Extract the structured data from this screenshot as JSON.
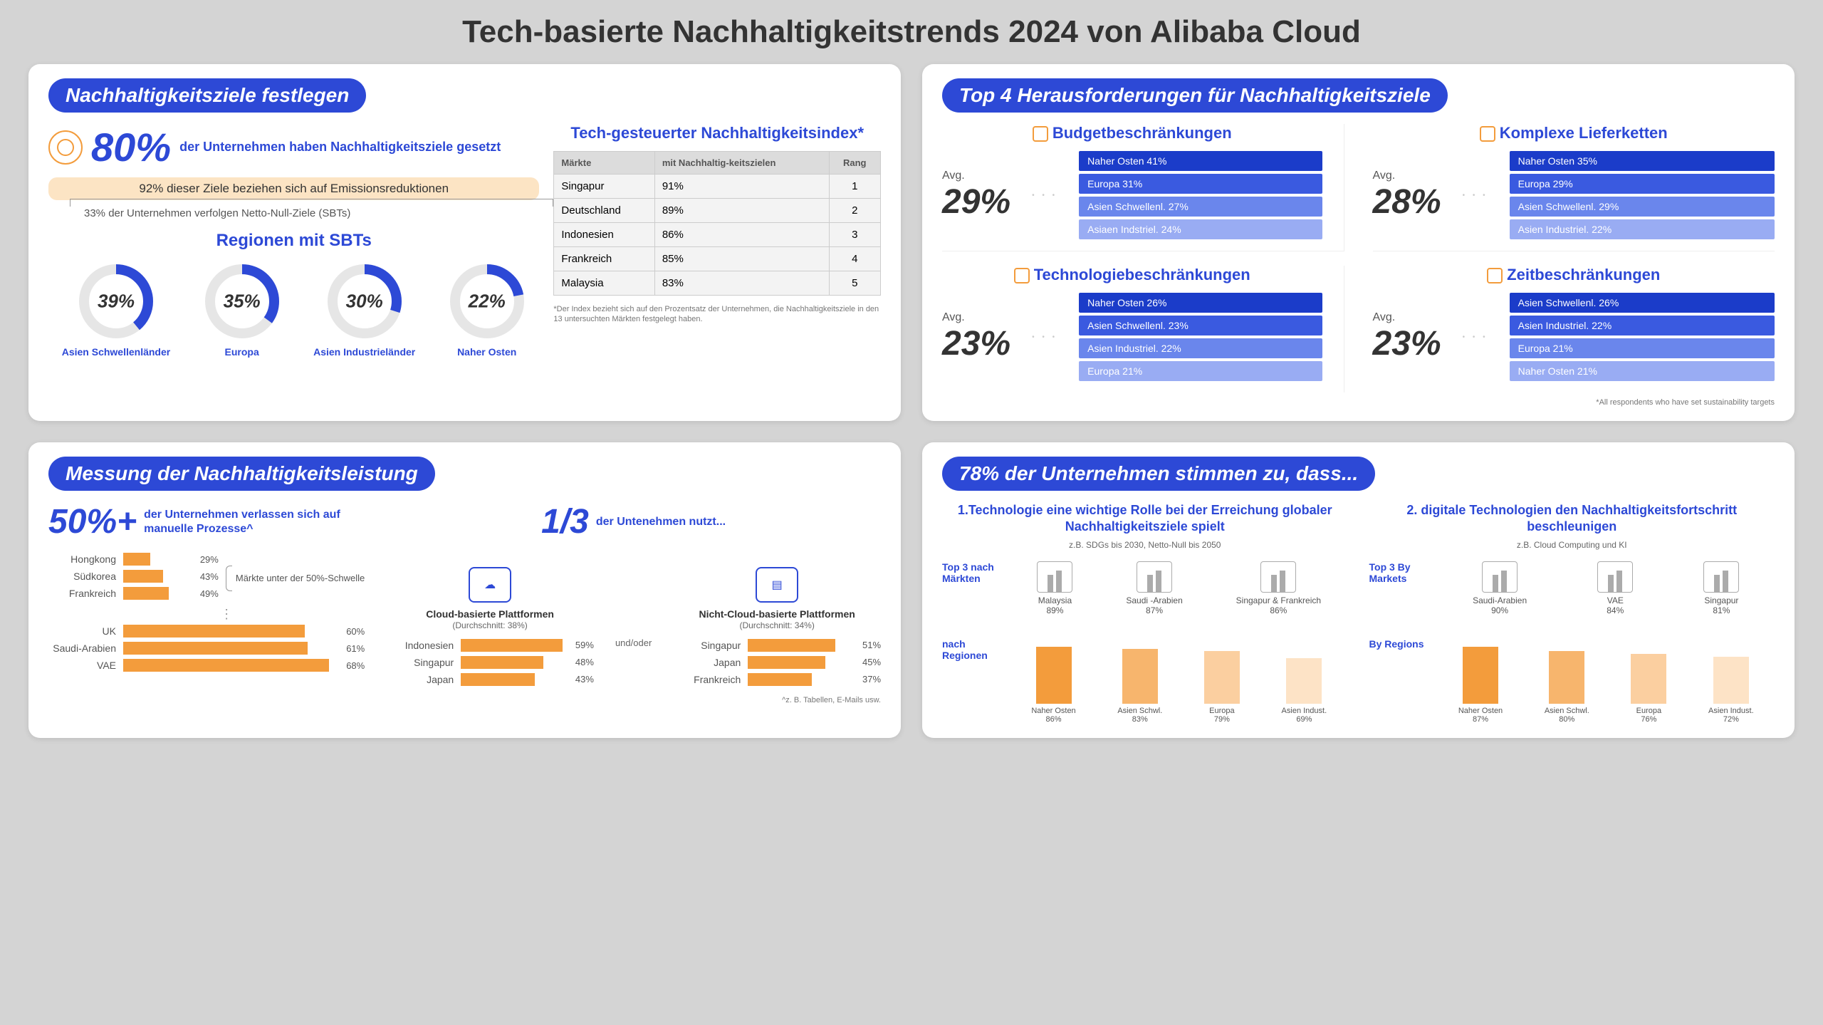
{
  "title": "Tech-basierte Nachhaltigkeitstrends 2024 von Alibaba Cloud",
  "colors": {
    "primary": "#2d49d6",
    "orange": "#f39c3c",
    "orange_light": "#fce4c4",
    "bg": "#d4d4d4",
    "card": "#ffffff",
    "text": "#333333",
    "muted": "#777777",
    "bar_shades": [
      "#1b3cc9",
      "#3a5ae0",
      "#6a86ec",
      "#99acf3"
    ]
  },
  "card1": {
    "header": "Nachhaltigkeitsziele festlegen",
    "headline_pct": "80%",
    "headline_desc": "der Unternehmen haben Nachhaltigkeitsziele gesetzt",
    "pill": "92% dieser Ziele beziehen sich auf Emissionsreduktionen",
    "bracket_note": "33% der Unternehmen verfolgen Netto-Null-Ziele (SBTs)",
    "sbt_title": "Regionen mit SBTs",
    "donuts": [
      {
        "pct": 39,
        "label": "Asien Schwellenländer"
      },
      {
        "pct": 35,
        "label": "Europa"
      },
      {
        "pct": 30,
        "label": "Asien Industrieländer"
      },
      {
        "pct": 22,
        "label": "Naher Osten"
      }
    ],
    "index_title": "Tech-gesteuerter Nachhaltigkeitsindex*",
    "index_cols": [
      "Märkte",
      "mit Nachhaltig-keitszielen",
      "Rang"
    ],
    "index_rows": [
      [
        "Singapur",
        "91%",
        "1"
      ],
      [
        "Deutschland",
        "89%",
        "2"
      ],
      [
        "Indonesien",
        "86%",
        "3"
      ],
      [
        "Frankreich",
        "85%",
        "4"
      ],
      [
        "Malaysia",
        "83%",
        "5"
      ]
    ],
    "index_footnote": "*Der Index bezieht sich auf den Prozentsatz der Unternehmen, die Nachhaltigkeitsziele in den 13 untersuchten Märkten festgelegt haben."
  },
  "card2": {
    "header": "Top 4 Herausforderungen für Nachhaltigkeitsziele",
    "avg_label": "Avg.",
    "items": [
      {
        "title": "Budgetbeschränkungen",
        "avg": "29%",
        "bars": [
          {
            "label": "Naher Osten 41%",
            "shade": 0
          },
          {
            "label": "Europa 31%",
            "shade": 1
          },
          {
            "label": "Asien Schwellenl. 27%",
            "shade": 2
          },
          {
            "label": "Asiaen Indstriel. 24%",
            "shade": 3
          }
        ]
      },
      {
        "title": "Komplexe Lieferketten",
        "avg": "28%",
        "bars": [
          {
            "label": "Naher Osten 35%",
            "shade": 0
          },
          {
            "label": "Europa 29%",
            "shade": 1
          },
          {
            "label": "Asien Schwellenl. 29%",
            "shade": 2
          },
          {
            "label": "Asien Industriel. 22%",
            "shade": 3
          }
        ]
      },
      {
        "title": "Technologiebeschränkungen",
        "avg": "23%",
        "bars": [
          {
            "label": "Naher Osten 26%",
            "shade": 0
          },
          {
            "label": "Asien Schwellenl. 23%",
            "shade": 1
          },
          {
            "label": "Asien Industriel. 22%",
            "shade": 2
          },
          {
            "label": "Europa 21%",
            "shade": 3
          }
        ]
      },
      {
        "title": "Zeitbeschränkungen",
        "avg": "23%",
        "bars": [
          {
            "label": "Asien Schwellenl. 26%",
            "shade": 0
          },
          {
            "label": "Asien Industriel. 22%",
            "shade": 1
          },
          {
            "label": "Europa 21%",
            "shade": 2
          },
          {
            "label": "Naher Osten 21%",
            "shade": 3
          }
        ]
      }
    ],
    "footnote": "*All respondents who have set sustainability targets"
  },
  "card3": {
    "header": "Messung der Nachhaltigkeitsleistung",
    "left_big": "50%+",
    "left_desc": "der Unternehmen verlassen sich auf manuelle Prozesse^",
    "bracket_text": "Märkte unter der 50%-Schwelle",
    "bars_top": [
      {
        "label": "Hongkong",
        "pct": 29
      },
      {
        "label": "Südkorea",
        "pct": 43
      },
      {
        "label": "Frankreich",
        "pct": 49
      }
    ],
    "bars_dots": "⋮",
    "bars_bottom": [
      {
        "label": "UK",
        "pct": 60
      },
      {
        "label": "Saudi-Arabien",
        "pct": 61
      },
      {
        "label": "VAE",
        "pct": 68
      }
    ],
    "right_big": "1/3",
    "right_desc": "der Untenehmen nutzt...",
    "andor": "und/oder",
    "platforms": [
      {
        "title": "Cloud-basierte Plattformen",
        "sub": "(Durchschnitt: 38%)",
        "bars": [
          {
            "label": "Indonesien",
            "pct": 59
          },
          {
            "label": "Singapur",
            "pct": 48
          },
          {
            "label": "Japan",
            "pct": 43
          }
        ]
      },
      {
        "title": "Nicht-Cloud-basierte Plattformen",
        "sub": "(Durchschnitt: 34%)",
        "bars": [
          {
            "label": "Singapur",
            "pct": 51
          },
          {
            "label": "Japan",
            "pct": 45
          },
          {
            "label": "Frankreich",
            "pct": 37
          }
        ]
      }
    ],
    "footnote": "^z. B. Tabellen, E-Mails usw."
  },
  "card4": {
    "header": "78% der Unternehmen stimmen zu, dass...",
    "top3_markets_label": "Top 3 nach Märkten",
    "top3_markets_label2": "Top 3 By Markets",
    "regions_label": "nach Regionen",
    "regions_label2": "By Regions",
    "cols": [
      {
        "q": "1.Technologie eine wichtige Rolle bei der Erreichung globaler Nachhaltigkeitsziele spielt",
        "eg": "z.B. SDGs bis 2030, Netto-Null bis 2050",
        "markets": [
          {
            "name": "Malaysia",
            "pct": "89%"
          },
          {
            "name": "Saudi -Arabien",
            "pct": "87%"
          },
          {
            "name": "Singapur & Frankreich",
            "pct": "86%"
          }
        ],
        "regions": [
          {
            "name": "Naher Osten",
            "pct": 86,
            "shade": 0
          },
          {
            "name": "Asien Schwl.",
            "pct": 83,
            "shade": 1
          },
          {
            "name": "Europa",
            "pct": 79,
            "shade": 2
          },
          {
            "name": "Asien Indust.",
            "pct": 69,
            "shade": 3
          }
        ]
      },
      {
        "q": "2. digitale Technologien den Nachhaltigkeitsfortschritt beschleunigen",
        "eg": "z.B. Cloud Computing und KI",
        "markets": [
          {
            "name": "Saudi-Arabien",
            "pct": "90%"
          },
          {
            "name": "VAE",
            "pct": "84%"
          },
          {
            "name": "Singapur",
            "pct": "81%"
          }
        ],
        "regions": [
          {
            "name": "Naher Osten",
            "pct": 87,
            "shade": 0
          },
          {
            "name": "Asien Schwl.",
            "pct": 80,
            "shade": 1
          },
          {
            "name": "Europa",
            "pct": 76,
            "shade": 2
          },
          {
            "name": "Asien Indust.",
            "pct": 72,
            "shade": 3
          }
        ]
      }
    ],
    "region_bar_colors": [
      "#f39c3c",
      "#f7b56d",
      "#fbcfa0",
      "#fde3c6"
    ]
  }
}
